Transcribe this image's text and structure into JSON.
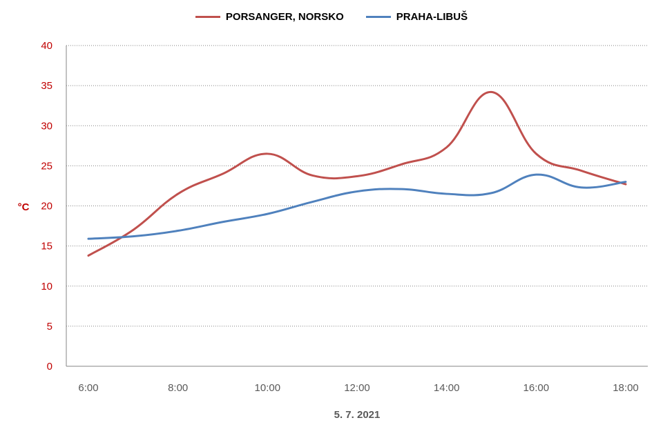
{
  "chart_data": {
    "type": "line",
    "title": "",
    "xlabel": "5. 7. 2021",
    "ylabel": "°C",
    "ylim": [
      0,
      40
    ],
    "yticks": [
      0,
      5,
      10,
      15,
      20,
      25,
      30,
      35,
      40
    ],
    "x": [
      "6:00",
      "7:00",
      "8:00",
      "9:00",
      "10:00",
      "11:00",
      "12:00",
      "13:00",
      "14:00",
      "15:00",
      "16:00",
      "17:00",
      "18:00"
    ],
    "xtick_labels": [
      "6:00",
      "8:00",
      "10:00",
      "12:00",
      "14:00",
      "16:00",
      "18:00"
    ],
    "grid": true,
    "legend_position": "top",
    "series": [
      {
        "name": "PORSANGER, NORSKO",
        "color": "#C0504D",
        "values": [
          13.8,
          17.0,
          21.5,
          24.0,
          26.5,
          23.8,
          23.7,
          25.2,
          27.3,
          34.2,
          26.5,
          24.4,
          22.7
        ]
      },
      {
        "name": "PRAHA-LIBUŠ",
        "color": "#4F81BD",
        "values": [
          15.9,
          16.2,
          16.9,
          18.0,
          19.0,
          20.5,
          21.8,
          22.1,
          21.5,
          21.6,
          23.9,
          22.3,
          23.0
        ]
      }
    ]
  },
  "colors": {
    "axis_tick_label": "#C00000",
    "x_tick_label": "#595959",
    "grid": "#808080"
  }
}
